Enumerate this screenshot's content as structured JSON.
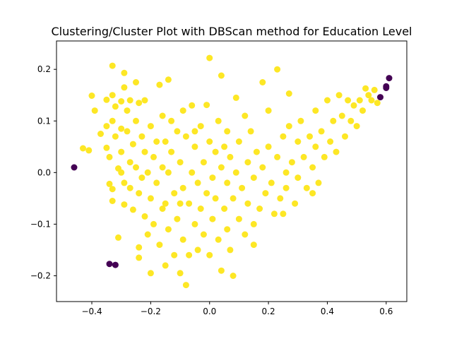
{
  "chart_data": {
    "type": "scatter",
    "title": "Clustering/Cluster Plot with DBScan method for Education Level",
    "xlabel": "",
    "ylabel": "",
    "xlim": [
      -0.52,
      0.67
    ],
    "ylim": [
      -0.25,
      0.255
    ],
    "x_ticks": [
      "−0.4",
      "−0.2",
      "0.0",
      "0.2",
      "0.4",
      "0.6"
    ],
    "y_ticks": [
      "−0.2",
      "−0.1",
      "0.0",
      "0.1",
      "0.2"
    ],
    "x_tick_values": [
      -0.4,
      -0.2,
      0.0,
      0.2,
      0.4,
      0.6
    ],
    "y_tick_values": [
      -0.2,
      -0.1,
      0.0,
      0.1,
      0.2
    ],
    "grid": false,
    "legend": "none",
    "colors": {
      "core_cluster": "#fde725",
      "noise": "#440154"
    },
    "series": [
      {
        "cluster": "core",
        "color": "#fde725",
        "points": [
          [
            -0.43,
            0.047
          ],
          [
            -0.41,
            0.043
          ],
          [
            -0.4,
            0.149
          ],
          [
            -0.39,
            0.12
          ],
          [
            -0.37,
            0.075
          ],
          [
            -0.35,
            0.141
          ],
          [
            -0.35,
            0.09
          ],
          [
            -0.35,
            0.048
          ],
          [
            -0.34,
            0.03
          ],
          [
            -0.34,
            -0.022
          ],
          [
            -0.33,
            0.207
          ],
          [
            -0.33,
            0.15
          ],
          [
            -0.33,
            0.1
          ],
          [
            -0.33,
            -0.032
          ],
          [
            -0.33,
            -0.055
          ],
          [
            -0.32,
            0.128
          ],
          [
            -0.32,
            0.07
          ],
          [
            -0.31,
            0.008
          ],
          [
            -0.31,
            -0.126
          ],
          [
            -0.3,
            0.138
          ],
          [
            -0.3,
            0.085
          ],
          [
            -0.3,
            0.04
          ],
          [
            -0.3,
            0.0
          ],
          [
            -0.29,
            0.193
          ],
          [
            -0.29,
            0.165
          ],
          [
            -0.29,
            -0.02
          ],
          [
            -0.29,
            -0.062
          ],
          [
            -0.28,
            0.12
          ],
          [
            -0.28,
            0.08
          ],
          [
            -0.27,
            0.14
          ],
          [
            -0.27,
            0.02
          ],
          [
            -0.27,
            -0.03
          ],
          [
            -0.26,
            0.055
          ],
          [
            -0.26,
            -0.072
          ],
          [
            -0.25,
            0.175
          ],
          [
            -0.25,
            0.1
          ],
          [
            -0.25,
            0.01
          ],
          [
            -0.24,
            0.135
          ],
          [
            -0.24,
            -0.04
          ],
          [
            -0.24,
            -0.145
          ],
          [
            -0.24,
            -0.165
          ],
          [
            -0.23,
            0.07
          ],
          [
            -0.23,
            -0.01
          ],
          [
            -0.22,
            0.14
          ],
          [
            -0.22,
            0.04
          ],
          [
            -0.22,
            -0.085
          ],
          [
            -0.21,
            0.0
          ],
          [
            -0.21,
            -0.12
          ],
          [
            -0.2,
            0.09
          ],
          [
            -0.2,
            -0.05
          ],
          [
            -0.2,
            -0.195
          ],
          [
            -0.19,
            0.03
          ],
          [
            -0.19,
            -0.1
          ],
          [
            -0.18,
            0.06
          ],
          [
            -0.18,
            -0.02
          ],
          [
            -0.17,
            0.17
          ],
          [
            -0.17,
            -0.14
          ],
          [
            -0.16,
            0.11
          ],
          [
            -0.16,
            0.01
          ],
          [
            -0.16,
            -0.07
          ],
          [
            -0.15,
            0.06
          ],
          [
            -0.15,
            -0.18
          ],
          [
            -0.14,
            0.18
          ],
          [
            -0.14,
            0.0
          ],
          [
            -0.14,
            -0.11
          ],
          [
            -0.13,
            0.1
          ],
          [
            -0.13,
            0.04
          ],
          [
            -0.12,
            -0.04
          ],
          [
            -0.12,
            -0.16
          ],
          [
            -0.11,
            0.08
          ],
          [
            -0.11,
            -0.09
          ],
          [
            -0.1,
            0.02
          ],
          [
            -0.1,
            -0.195
          ],
          [
            -0.09,
            0.12
          ],
          [
            -0.09,
            -0.03
          ],
          [
            -0.09,
            -0.13
          ],
          [
            -0.08,
            0.07
          ],
          [
            -0.08,
            -0.218
          ],
          [
            -0.07,
            -0.06
          ],
          [
            -0.07,
            -0.16
          ],
          [
            -0.06,
            0.13
          ],
          [
            -0.06,
            0.0
          ],
          [
            -0.05,
            0.05
          ],
          [
            -0.05,
            -0.1
          ],
          [
            -0.04,
            -0.02
          ],
          [
            -0.04,
            -0.15
          ],
          [
            -0.03,
            0.09
          ],
          [
            -0.03,
            -0.07
          ],
          [
            -0.02,
            0.02
          ],
          [
            -0.02,
            -0.12
          ],
          [
            -0.01,
            0.131
          ],
          [
            -0.01,
            -0.04
          ],
          [
            0.0,
            0.222
          ],
          [
            0.0,
            0.06
          ],
          [
            0.0,
            -0.16
          ],
          [
            0.01,
            -0.01
          ],
          [
            0.01,
            -0.09
          ],
          [
            0.02,
            0.04
          ],
          [
            0.02,
            -0.05
          ],
          [
            0.03,
            -0.13
          ],
          [
            0.03,
            0.1
          ],
          [
            0.04,
            0.188
          ],
          [
            0.04,
            0.01
          ],
          [
            0.04,
            -0.19
          ],
          [
            0.05,
            -0.07
          ],
          [
            0.06,
            0.08
          ],
          [
            0.06,
            -0.02
          ],
          [
            0.06,
            -0.11
          ],
          [
            0.07,
            0.03
          ],
          [
            0.07,
            -0.15
          ],
          [
            0.08,
            -0.05
          ],
          [
            0.09,
            0.145
          ],
          [
            0.09,
            0.0
          ],
          [
            0.1,
            -0.09
          ],
          [
            0.1,
            0.06
          ],
          [
            0.11,
            -0.03
          ],
          [
            0.12,
            0.11
          ],
          [
            0.12,
            -0.12
          ],
          [
            0.13,
            0.02
          ],
          [
            0.13,
            -0.06
          ],
          [
            0.14,
            0.08
          ],
          [
            0.15,
            -0.01
          ],
          [
            0.15,
            -0.1
          ],
          [
            0.16,
            0.04
          ],
          [
            0.17,
            -0.07
          ],
          [
            0.18,
            0.175
          ],
          [
            0.18,
            0.01
          ],
          [
            0.19,
            -0.04
          ],
          [
            0.2,
            0.12
          ],
          [
            0.2,
            0.05
          ],
          [
            0.21,
            -0.02
          ],
          [
            0.22,
            -0.08
          ],
          [
            0.23,
            0.2
          ],
          [
            0.23,
            0.03
          ],
          [
            0.24,
            -0.05
          ],
          [
            0.25,
            0.07
          ],
          [
            0.26,
            0.0
          ],
          [
            0.26,
            -0.03
          ],
          [
            0.27,
            0.153
          ],
          [
            0.27,
            0.09
          ],
          [
            0.28,
            0.02
          ],
          [
            0.29,
            -0.06
          ],
          [
            0.3,
            0.06
          ],
          [
            0.3,
            -0.01
          ],
          [
            0.31,
            0.1
          ],
          [
            0.32,
            0.03
          ],
          [
            0.33,
            -0.03
          ],
          [
            0.34,
            0.07
          ],
          [
            0.35,
            0.01
          ],
          [
            0.36,
            0.12
          ],
          [
            0.36,
            0.05
          ],
          [
            0.37,
            -0.02
          ],
          [
            0.38,
            0.08
          ],
          [
            0.39,
            0.03
          ],
          [
            0.4,
            0.14
          ],
          [
            0.41,
            0.06
          ],
          [
            0.42,
            0.1
          ],
          [
            0.43,
            0.04
          ],
          [
            0.44,
            0.15
          ],
          [
            0.45,
            0.11
          ],
          [
            0.46,
            0.07
          ],
          [
            0.47,
            0.14
          ],
          [
            0.48,
            0.1
          ],
          [
            0.49,
            0.13
          ],
          [
            0.5,
            0.09
          ],
          [
            0.51,
            0.14
          ],
          [
            0.52,
            0.12
          ],
          [
            0.53,
            0.163
          ],
          [
            0.54,
            0.15
          ],
          [
            0.55,
            0.14
          ],
          [
            0.56,
            0.16
          ],
          [
            0.57,
            0.135
          ],
          [
            -0.05,
            0.08
          ],
          [
            0.05,
            0.05
          ],
          [
            -0.1,
            -0.06
          ],
          [
            0.15,
            -0.14
          ],
          [
            0.25,
            -0.08
          ],
          [
            0.35,
            -0.04
          ],
          [
            -0.15,
            -0.06
          ],
          [
            0.08,
            -0.2
          ]
        ]
      },
      {
        "cluster": "noise",
        "color": "#440154",
        "points": [
          [
            -0.46,
            0.01
          ],
          [
            -0.34,
            -0.177
          ],
          [
            -0.32,
            -0.179
          ],
          [
            0.58,
            0.146
          ],
          [
            0.6,
            0.167
          ],
          [
            0.6,
            0.164
          ],
          [
            0.61,
            0.183
          ]
        ]
      }
    ]
  }
}
